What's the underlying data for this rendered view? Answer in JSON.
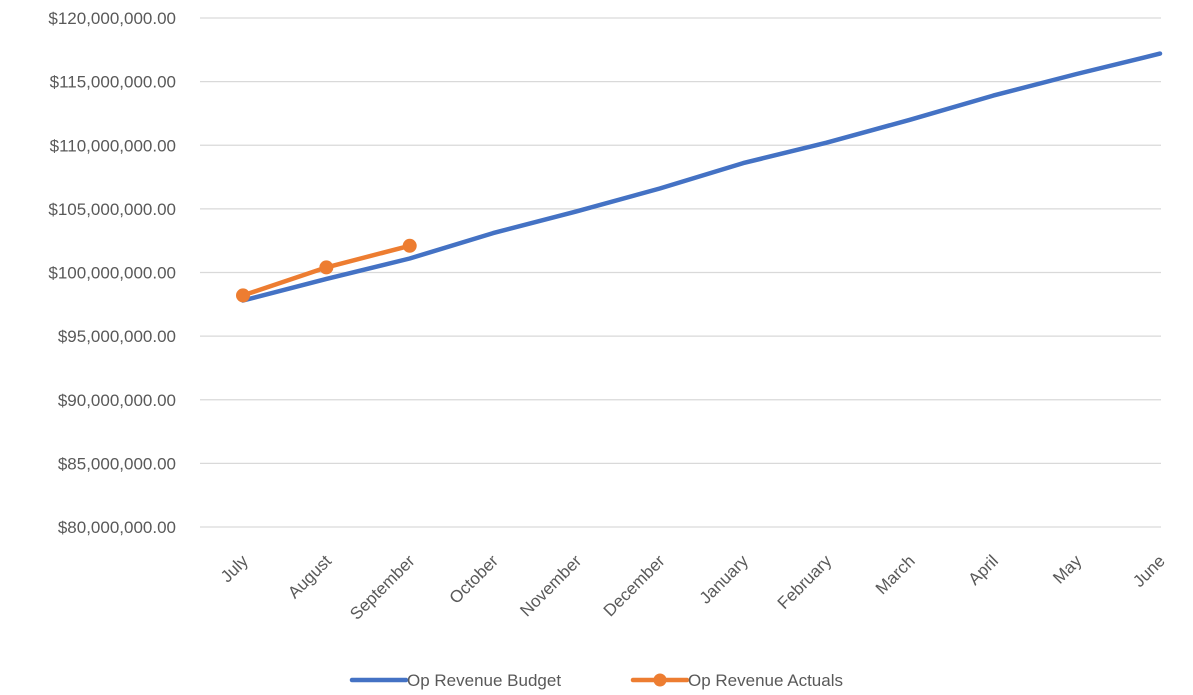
{
  "chart_data": {
    "type": "line",
    "title": "",
    "xlabel": "",
    "ylabel": "",
    "categories": [
      "July",
      "August",
      "September",
      "October",
      "November",
      "December",
      "January",
      "February",
      "March",
      "April",
      "May",
      "June"
    ],
    "ylim": [
      80000000,
      120000000
    ],
    "yticks": [
      80000000,
      85000000,
      90000000,
      95000000,
      100000000,
      105000000,
      110000000,
      115000000,
      120000000
    ],
    "ytick_labels": [
      "$80,000,000.00",
      "$85,000,000.00",
      "$90,000,000.00",
      "$95,000,000.00",
      "$100,000,000.00",
      "$105,000,000.00",
      "$110,000,000.00",
      "$115,000,000.00",
      "$120,000,000.00"
    ],
    "grid": true,
    "legend_position": "bottom",
    "series": [
      {
        "name": "Op Revenue Budget",
        "color": "#4472C4",
        "marker": false,
        "values": [
          97800000,
          99500000,
          101100000,
          103100000,
          104800000,
          106600000,
          108600000,
          110200000,
          112000000,
          113900000,
          115600000,
          117200000
        ]
      },
      {
        "name": "Op Revenue Actuals",
        "color": "#ED7D31",
        "marker": true,
        "values": [
          98200000,
          100400000,
          102100000,
          null,
          null,
          null,
          null,
          null,
          null,
          null,
          null,
          null
        ]
      }
    ]
  }
}
